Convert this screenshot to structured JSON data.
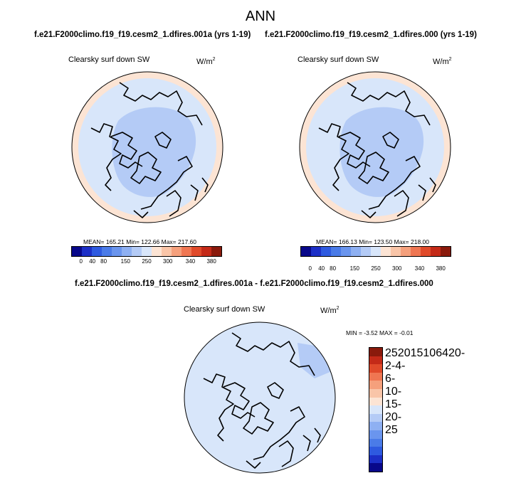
{
  "figure": {
    "season": "ANN",
    "case1_title": "f.e21.F2000climo.f19_f19.cesm2_1.dfires.001a (yrs 1-19)",
    "case2_title": "f.e21.F2000climo.f19_f19.cesm2_1.dfires.000 (yrs 1-19)",
    "diff_title": "f.e21.F2000climo.f19_f19.cesm2_1.dfires.001a - f.e21.F2000climo.f19_f19.cesm2_1.dfires.000"
  },
  "panels": {
    "left": {
      "variable": "Clearsky surf down SW",
      "units_base": "W/m",
      "units_exp": "2",
      "stats": "MEAN= 165.21  Min= 122.66  Max= 217.60"
    },
    "right": {
      "variable": "Clearsky surf down SW",
      "units_base": "W/m",
      "units_exp": "2",
      "stats": "MEAN= 166.13  Min= 123.50  Max= 218.00"
    },
    "diff": {
      "variable": "Clearsky surf down SW",
      "units_base": "W/m",
      "units_exp": "2",
      "stats": "MIN =  -3.52 MAX =  -0.01"
    }
  },
  "colorbars": {
    "abs_colors": [
      "#08088a",
      "#1c2fc7",
      "#2e5ae0",
      "#4a7be8",
      "#6a95ee",
      "#8eb0f2",
      "#b4cbf6",
      "#d8e6fa",
      "#fce4d4",
      "#f9c5a8",
      "#f5a07c",
      "#ef7652",
      "#e04a2a",
      "#c42a18",
      "#8a1a0c"
    ],
    "abs_ticks": [
      "0",
      "40",
      "80",
      "150",
      "250",
      "300",
      "340",
      "380"
    ],
    "diff_colors": [
      "#8a1a0c",
      "#c42a18",
      "#e04a2a",
      "#ef7652",
      "#f5a07c",
      "#f9c5a8",
      "#fce4d4",
      "#d8e6fa",
      "#b4cbf6",
      "#8eb0f2",
      "#6a95ee",
      "#4a7be8",
      "#2e5ae0",
      "#1c2fc7",
      "#08088a"
    ],
    "diff_ticks": [
      "25",
      "20",
      "15",
      "10",
      "6",
      "4",
      "2",
      "0",
      "-2",
      "-4",
      "-6",
      "-10",
      "-15",
      "-20",
      "-25"
    ]
  },
  "map_colors": {
    "outer_ring": "#fce4d4",
    "ocean_base": "#d8e6fa",
    "arctic_core": "#b4cbf6",
    "diff_base": "#d8e6fa",
    "diff_patch": "#b4cbf6"
  }
}
